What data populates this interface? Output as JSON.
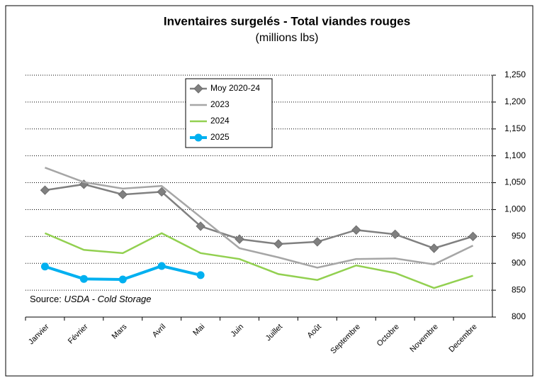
{
  "chart_data": {
    "type": "line",
    "title": "Inventaires surgelés - Total viandes rouges",
    "subtitle": "(millions lbs)",
    "source_label": "Source:",
    "source": "USDA - Cold Storage",
    "categories": [
      "Janvier",
      "Février",
      "Mars",
      "Avril",
      "Mai",
      "Juin",
      "Juillet",
      "Août",
      "Septembre",
      "Octobre",
      "Novembre",
      "Decembre"
    ],
    "series": [
      {
        "name": "Moy 2020-24",
        "color": "#808080",
        "marker": "diamond",
        "values": [
          1036,
          1047,
          1028,
          1033,
          969,
          945,
          936,
          940,
          962,
          954,
          928,
          950
        ]
      },
      {
        "name": "2023",
        "color": "#a6a6a6",
        "values": [
          1078,
          1051,
          1039,
          1044,
          986,
          928,
          911,
          892,
          908,
          909,
          898,
          933
        ]
      },
      {
        "name": "2024",
        "color": "#92d050",
        "values": [
          956,
          925,
          919,
          956,
          919,
          908,
          880,
          869,
          896,
          882,
          854,
          877
        ]
      },
      {
        "name": "2025",
        "color": "#00b0f0",
        "marker": "circle",
        "values": [
          894,
          871,
          870,
          895,
          878,
          null,
          null,
          null,
          null,
          null,
          null,
          null
        ]
      }
    ],
    "ylim": [
      800,
      1250
    ],
    "yticks": [
      800,
      850,
      900,
      950,
      {
        "value": 1000,
        "label": "1,000"
      },
      {
        "value": 1050,
        "label": "1,050"
      },
      {
        "value": 1100,
        "label": "1,100"
      },
      {
        "value": 1150,
        "label": "1,150"
      },
      {
        "value": 1200,
        "label": "1,200"
      },
      {
        "value": 1250,
        "label": "1,250"
      }
    ],
    "grid": true,
    "y_axis_side": "right",
    "legend": "upper-left"
  }
}
